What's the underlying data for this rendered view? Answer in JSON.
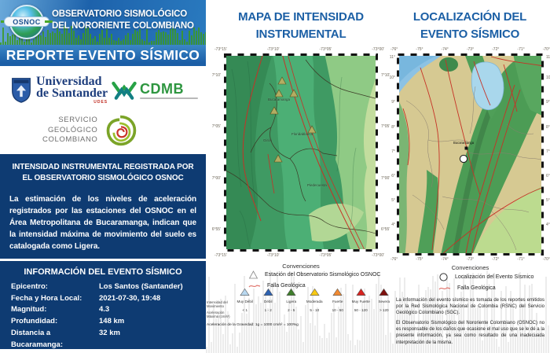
{
  "header": {
    "logo": "OSNOC",
    "title_line1": "OBSERVATORIO SISMOLÓGICO",
    "title_line2": "DEL NORORIENTE COLOMBIANO",
    "banner": "REPORTE EVENTO SÍSMICO"
  },
  "logos": {
    "udes_line1": "Universidad",
    "udes_line2": "de Santander",
    "udes_acronym": "UDES",
    "cdmb": "CDMB",
    "sgc_line1": "SERVICIO",
    "sgc_line2": "GEOLÓGICO",
    "sgc_line3": "COLOMBIANO"
  },
  "intensity_panel": {
    "title": "INTENSIDAD INSTRUMENTAL REGISTRADA POR EL OBSERVATORIO SISMOLÓGICO OSNOC",
    "body": "La estimación de los niveles de aceleración registrados por las estaciones del OSNOC en el Área Metropolitana de Bucaramanga, indican que la intensidad máxima de movimiento del suelo es catalogada como Ligera."
  },
  "event_info": {
    "title": "INFORMACIÓN DEL EVENTO SÍSMICO",
    "rows": [
      {
        "label": "Epicentro:",
        "value": "Los Santos (Santander)"
      },
      {
        "label": "Fecha y Hora Local:",
        "value": "2021-07-30, 19:48"
      },
      {
        "label": "Magnitud:",
        "value": "4.3"
      },
      {
        "label": "Profundidad:",
        "value": "148 km"
      },
      {
        "label": "Distancia a Bucaramanga:",
        "value": "32 km"
      }
    ]
  },
  "intensity_map": {
    "title_line1": "MAPA DE INTENSIDAD",
    "title_line2": "INSTRUMENTAL",
    "lon_labels": [
      "-73°15'",
      "-73°10'",
      "-73°05'",
      "-73°00'"
    ],
    "lat_labels": [
      "7°10'",
      "7°05'",
      "7°00'",
      "6°55'"
    ],
    "cities": {
      "c1": "Bucaramanga",
      "c2": "Girón",
      "c3": "Floridablanca",
      "c4": "Piedecuesta"
    },
    "legend": {
      "title": "Convenciones",
      "station": "Estación del Observatorio Sismológico OSNOC",
      "fault": "Falla Geológica"
    },
    "scale": {
      "row1_label": "Intensidad del Movimiento",
      "row2_label": "Aceleración Máxima (cm/s²)",
      "levels": [
        {
          "name": "Muy Débil",
          "range": "< 1",
          "color": "#b9d8f0"
        },
        {
          "name": "Débil",
          "range": "1 - 2",
          "color": "#2e62b1"
        },
        {
          "name": "Ligera",
          "range": "2 - 5",
          "color": "#3e7d2b"
        },
        {
          "name": "Moderada",
          "range": "5 - 10",
          "color": "#f8c912"
        },
        {
          "name": "Fuerte",
          "range": "10 - 50",
          "color": "#f18a33"
        },
        {
          "name": "Muy Fuerte",
          "range": "50 - 120",
          "color": "#d8231f"
        },
        {
          "name": "Severa",
          "range": "> 120",
          "color": "#7e100d"
        }
      ],
      "gravity_note": "Aceleración de la Gravedad: 1g = 1000 cm/s² = 100%g"
    }
  },
  "location_map": {
    "title_line1": "LOCALIZACIÓN DEL",
    "title_line2": "EVENTO SÍSMICO",
    "lon_labels": [
      "-76°",
      "-75°",
      "-74°",
      "-73°",
      "-72°",
      "-71°",
      "-70°"
    ],
    "lat_labels": [
      "11°",
      "10°",
      "9°",
      "8°",
      "7°",
      "6°",
      "5°",
      "4°"
    ],
    "marker_label": "Bucaramanga",
    "legend": {
      "title": "Convenciones",
      "event": "Localización del Evento Sísmico",
      "fault": "Falla Geológica"
    },
    "disclaimer1": "La información del evento sísmico es tomada de los reportes emitidos por la Red Sismológica Nacional de Colombia (RSNC) del Servicio Geológico Colombiano (SGC).",
    "disclaimer2": "El Observatorio Sismológico del Nororiente Colombiano (OSNOC) no es responsable de los daños que ocasione el mal uso que se le dé a la presente información, ya sea como resultado de una inadecuada interpretación de la misma."
  },
  "colors": {
    "accent_blue": "#1b5fa5",
    "panel_navy": "#0e3b72",
    "fault_red": "#c63226"
  }
}
